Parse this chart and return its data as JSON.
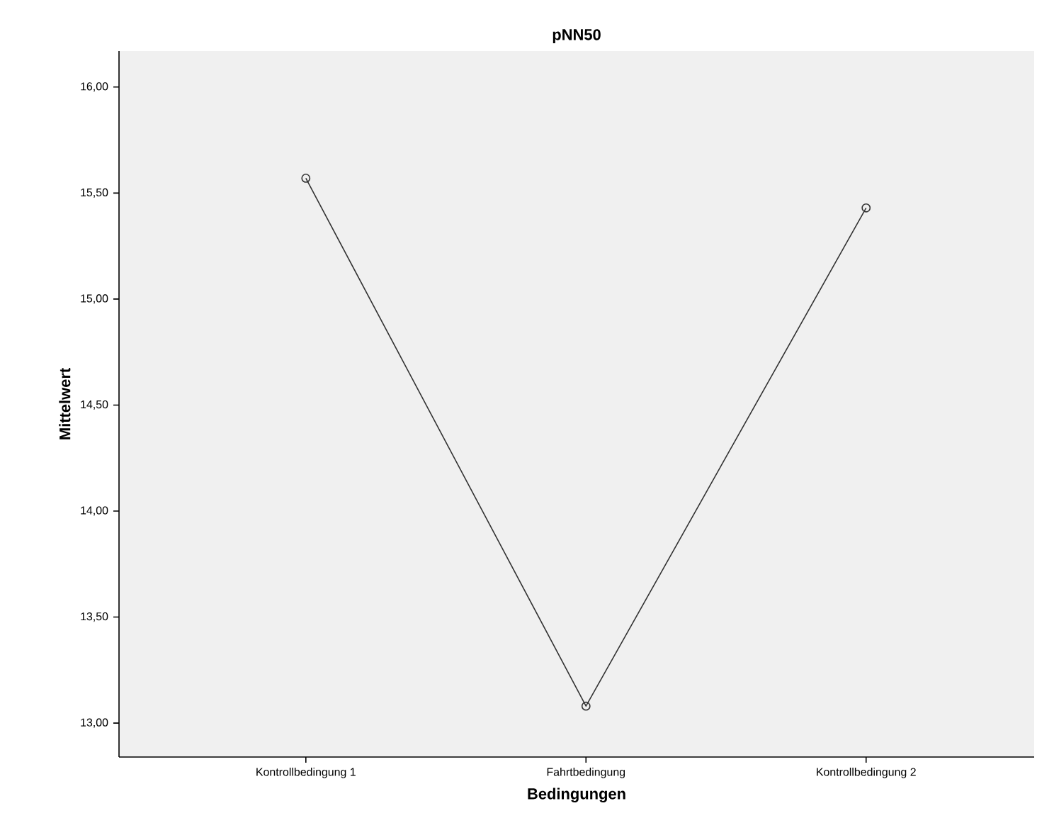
{
  "chart_data": {
    "type": "line",
    "title": "pNN50",
    "xlabel": "Bedingungen",
    "ylabel": "Mittelwert",
    "categories": [
      "Kontrollbedingung 1",
      "Fahrtbedingung",
      "Kontrollbedingung 2"
    ],
    "values": [
      15.57,
      13.08,
      15.43
    ],
    "color": "#333333",
    "marker": "circle",
    "line_style": "solid",
    "ylim": [
      12.84,
      16.17
    ],
    "yticks": [
      {
        "value": 13,
        "label": "13,00"
      },
      {
        "value": 13.5,
        "label": "13,50"
      },
      {
        "value": 14,
        "label": "14,00"
      },
      {
        "value": 14.5,
        "label": "14,50"
      },
      {
        "value": 15,
        "label": "15,00"
      },
      {
        "value": 15.5,
        "label": "15,50"
      },
      {
        "value": 16,
        "label": "16,00"
      }
    ],
    "grid": false
  }
}
